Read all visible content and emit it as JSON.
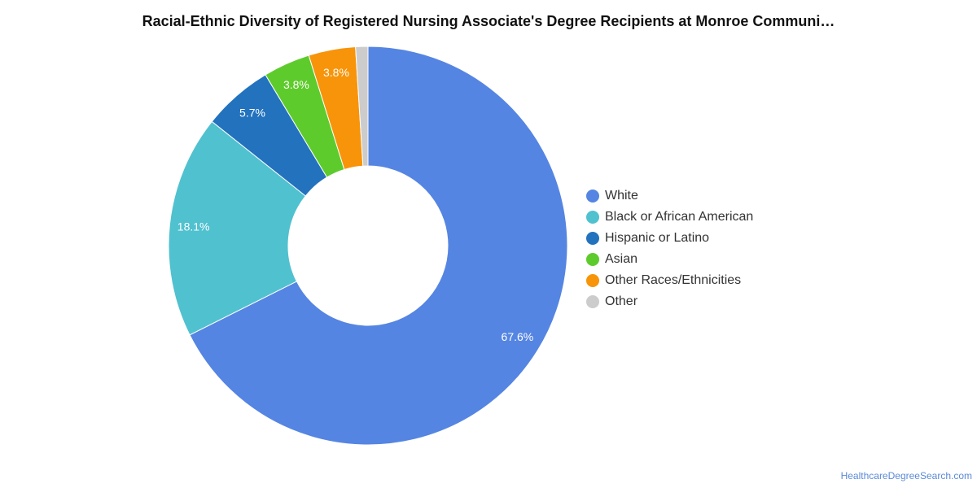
{
  "title": "Racial-Ethnic Diversity of Registered Nursing Associate's Degree Recipients at Monroe Communi…",
  "source": "HealthcareDegreeSearch.com",
  "chart_data": {
    "type": "pie",
    "subtype": "donut",
    "title": "Racial-Ethnic Diversity of Registered Nursing Associate's Degree Recipients at Monroe Communi…",
    "legend_position": "right",
    "categories": [
      "White",
      "Black or African American",
      "Hispanic or Latino",
      "Asian",
      "Other Races/Ethnicities",
      "Other"
    ],
    "values": [
      67.6,
      18.1,
      5.7,
      3.8,
      3.8,
      1.0
    ],
    "labels": [
      "67.6%",
      "18.1%",
      "5.7%",
      "3.8%",
      "3.8%",
      ""
    ],
    "colors": [
      "#5585e2",
      "#50c1cf",
      "#2372be",
      "#5ecb2c",
      "#f79409",
      "#cccccc"
    ]
  }
}
